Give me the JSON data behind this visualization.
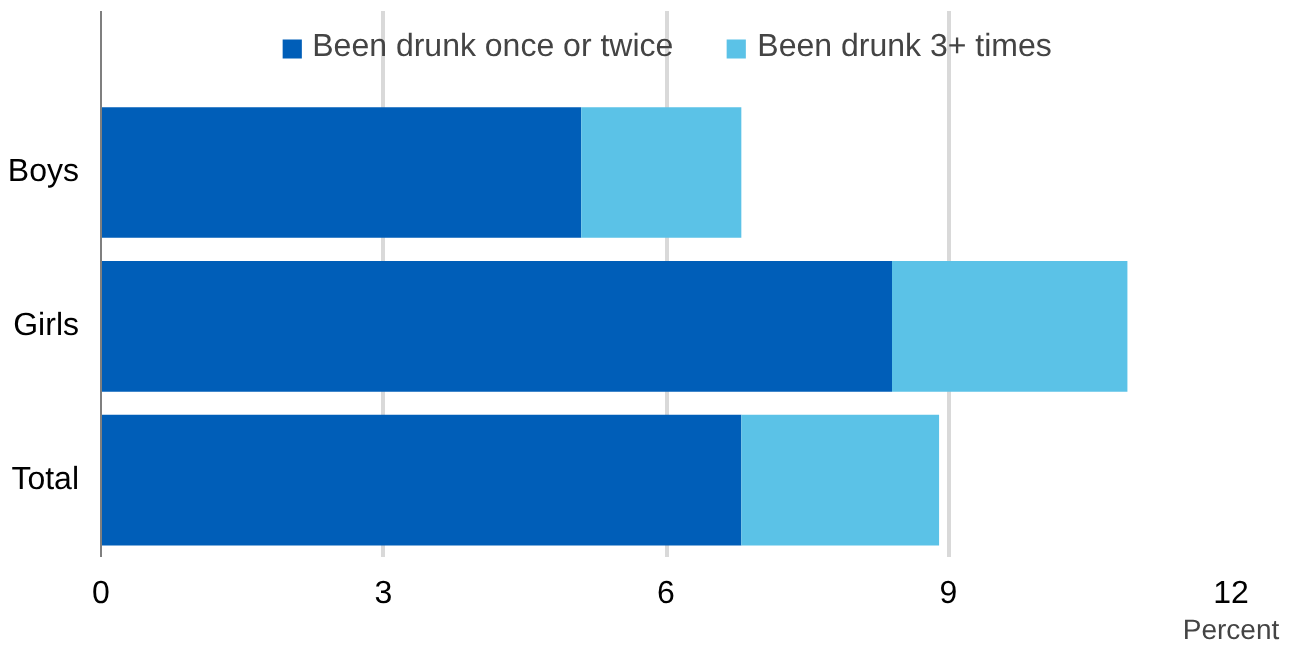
{
  "chart_data": {
    "type": "bar",
    "orientation": "horizontal",
    "stacked": true,
    "categories": [
      "Boys",
      "Girls",
      "Total"
    ],
    "series": [
      {
        "name": "Been drunk once or twice",
        "color": "#005eb8",
        "values": [
          5.1,
          8.4,
          6.8
        ]
      },
      {
        "name": "Been drunk 3+ times",
        "color": "#5bc2e7",
        "values": [
          1.7,
          2.5,
          2.1
        ]
      }
    ],
    "xlim": [
      0,
      12
    ],
    "xticks": [
      0,
      3,
      6,
      9,
      12
    ],
    "xlabel": "Percent",
    "grid": "x",
    "legend": "top"
  }
}
